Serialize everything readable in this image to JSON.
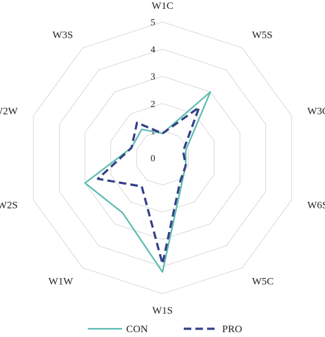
{
  "chart_data": {
    "type": "radar",
    "categories": [
      "W1C",
      "W5S",
      "W3C",
      "W6S",
      "W5C",
      "W1S",
      "W1W",
      "W2S",
      "W2W",
      "W3S"
    ],
    "rlim": [
      0,
      5
    ],
    "ticks": [
      "0",
      "1",
      "2",
      "3",
      "4",
      "5"
    ],
    "grid": true,
    "legend_position": "bottom",
    "series": [
      {
        "name": "CON",
        "values": [
          0.9,
          3.0,
          0.9,
          0.9,
          1.2,
          4.2,
          2.5,
          3.0,
          1.2,
          1.3
        ],
        "color": "#5bbbb0",
        "style": "solid"
      },
      {
        "name": "PRO",
        "values": [
          0.9,
          2.3,
          0.8,
          0.9,
          1.1,
          3.9,
          1.3,
          2.5,
          1.2,
          1.6
        ],
        "color": "#35408a",
        "style": "dashed"
      }
    ]
  }
}
